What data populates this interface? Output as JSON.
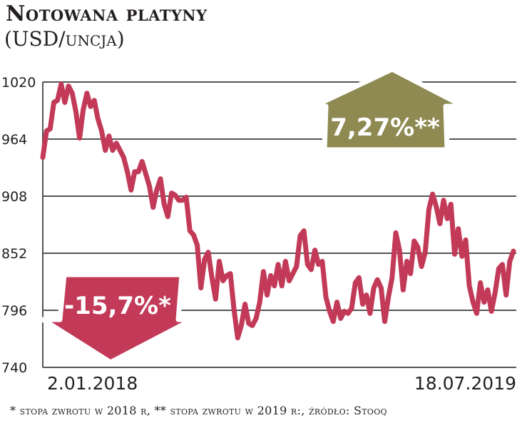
{
  "title": "Notowana platyny",
  "subtitle": "(USD/uncja)",
  "footer": "* stopa zwrotu w 2018 r, ** stopa zwrotu w 2019 r:, źródło: Stooq",
  "colors": {
    "line": "#c23a58",
    "down_arrow": "#c23a58",
    "up_arrow": "#8e8a52",
    "grid": "#555555"
  },
  "annotations": {
    "down": {
      "label": "-15,7%*",
      "icon": "arrow-down"
    },
    "up": {
      "label": "7,27%**",
      "icon": "arrow-up"
    }
  },
  "chart_data": {
    "type": "line",
    "title": "Notowana platyny",
    "ylabel": "USD/uncja",
    "ylim": [
      740,
      1020
    ],
    "yticks": [
      740,
      796,
      852,
      908,
      964,
      1020
    ],
    "ytick_labels": [
      "740",
      "796",
      "852",
      "908",
      "964",
      "1020"
    ],
    "xlim": [
      "2018-01-02",
      "2019-07-18"
    ],
    "xtick_labels": [
      "2.01.2018",
      "18.07.2019"
    ],
    "grid": true,
    "legend": "none",
    "values": [
      946,
      972,
      974,
      1000,
      1002,
      1018,
      1000,
      1016,
      1009,
      991,
      965,
      993,
      1009,
      996,
      1002,
      984,
      972,
      953,
      967,
      953,
      960,
      953,
      946,
      932,
      914,
      932,
      932,
      942,
      930,
      918,
      897,
      914,
      925,
      900,
      888,
      911,
      909,
      904,
      904,
      907,
      874,
      870,
      860,
      818,
      846,
      853,
      828,
      807,
      844,
      825,
      830,
      832,
      797,
      769,
      781,
      802,
      783,
      781,
      788,
      804,
      834,
      811,
      830,
      820,
      841,
      820,
      844,
      825,
      832,
      839,
      869,
      874,
      841,
      836,
      855,
      841,
      844,
      809,
      795,
      785,
      804,
      788,
      795,
      793,
      798,
      823,
      828,
      802,
      811,
      793,
      818,
      826,
      818,
      785,
      809,
      828,
      872,
      855,
      816,
      844,
      832,
      864,
      858,
      839,
      853,
      895,
      910,
      898,
      881,
      904,
      886,
      900,
      851,
      876,
      849,
      865,
      820,
      804,
      793,
      823,
      804,
      816,
      795,
      813,
      837,
      841,
      811,
      844,
      854
    ]
  }
}
